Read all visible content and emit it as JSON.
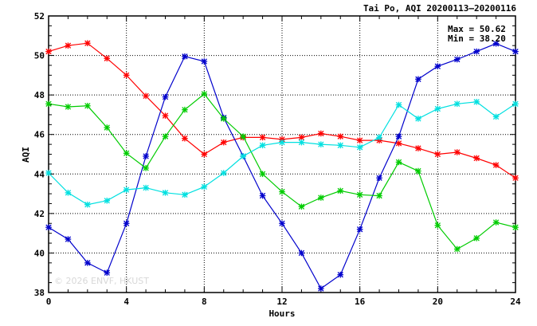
{
  "chart_data": {
    "type": "line",
    "title": "Tai Po, AQI 20200113–20200116",
    "xlabel": "Hours",
    "ylabel": "AQI",
    "xlim": [
      0,
      24
    ],
    "ylim": [
      38,
      52
    ],
    "xticks": [
      0,
      4,
      8,
      12,
      16,
      20,
      24
    ],
    "yticks": [
      38,
      40,
      42,
      44,
      46,
      48,
      50,
      52
    ],
    "grid": true,
    "annotations": {
      "max": "Max = 50.62",
      "min": "Min = 38.20"
    },
    "watermark": "© 2026 ENVF, HKUST",
    "x": [
      0,
      1,
      2,
      3,
      4,
      5,
      6,
      7,
      8,
      9,
      10,
      11,
      12,
      13,
      14,
      15,
      16,
      17,
      18,
      19,
      20,
      21,
      22,
      23,
      24
    ],
    "series": [
      {
        "color": "#ff0000",
        "values": [
          50.2,
          50.5,
          50.62,
          49.85,
          49.0,
          47.95,
          46.95,
          45.8,
          45.0,
          45.6,
          45.85,
          45.85,
          45.75,
          45.85,
          46.05,
          45.9,
          45.7,
          45.7,
          45.55,
          45.3,
          45.0,
          45.1,
          44.8,
          44.45,
          43.8
        ]
      },
      {
        "color": "#0000cc",
        "values": [
          41.3,
          40.7,
          39.5,
          39.0,
          41.5,
          44.9,
          47.9,
          49.95,
          49.7,
          46.85,
          44.9,
          42.9,
          41.5,
          40.0,
          38.2,
          38.9,
          41.2,
          43.8,
          45.9,
          48.8,
          49.45,
          49.8,
          50.2,
          50.6,
          50.2
        ]
      },
      {
        "color": "#00cc00",
        "values": [
          47.55,
          47.4,
          47.45,
          46.35,
          45.05,
          44.3,
          45.9,
          47.25,
          48.05,
          46.8,
          45.9,
          44.0,
          43.1,
          42.35,
          42.8,
          43.15,
          42.95,
          42.9,
          44.6,
          44.15,
          41.4,
          40.2,
          40.75,
          41.55,
          41.3
        ]
      },
      {
        "color": "#00e0e0",
        "values": [
          44.05,
          43.05,
          42.45,
          42.65,
          43.2,
          43.3,
          43.05,
          42.95,
          43.35,
          44.05,
          44.9,
          45.45,
          45.6,
          45.6,
          45.5,
          45.45,
          45.35,
          45.85,
          47.5,
          46.8,
          47.3,
          47.55,
          47.65,
          46.9,
          47.55
        ]
      }
    ]
  }
}
